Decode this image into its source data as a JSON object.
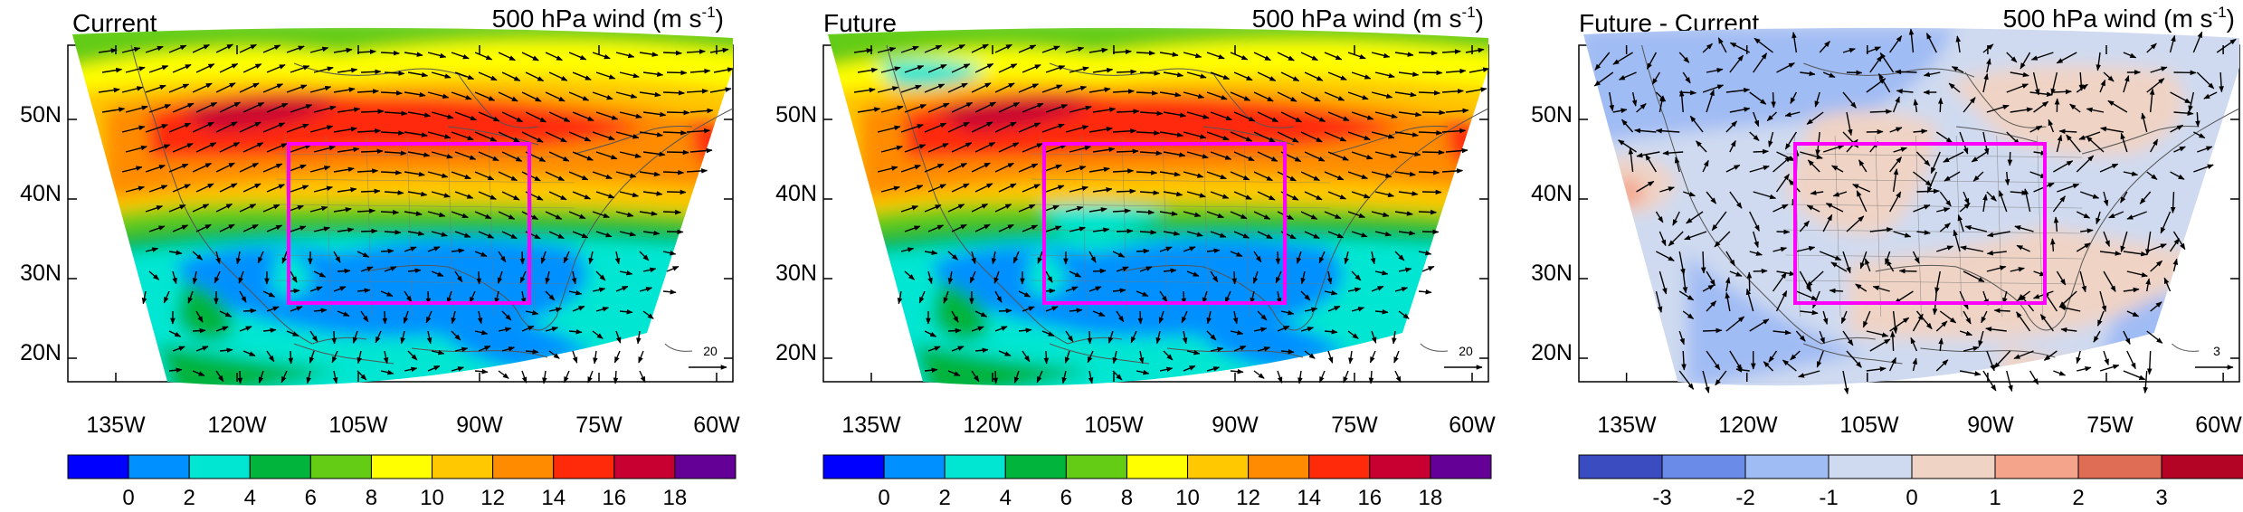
{
  "panels": [
    {
      "title": "Current",
      "subtitle": "500 hPa wind (m s",
      "unit_sup": "-1",
      "unit_close": ")",
      "ref_vector_label": "20",
      "lat_labels": [
        "50N",
        "40N",
        "30N",
        "20N"
      ],
      "lon_labels": [
        "135W",
        "120W",
        "105W",
        "90W",
        "75W",
        "60W"
      ],
      "colorbar": {
        "colors": [
          "#0000ff",
          "#0090ff",
          "#00e6d2",
          "#00b43c",
          "#64cc14",
          "#ffff00",
          "#ffc800",
          "#ff8c00",
          "#ff2a0a",
          "#c80032",
          "#640096"
        ],
        "labels": [
          "0",
          "2",
          "4",
          "6",
          "8",
          "10",
          "12",
          "14",
          "16",
          "18"
        ]
      }
    },
    {
      "title": "Future",
      "subtitle": "500 hPa wind (m s",
      "unit_sup": "-1",
      "unit_close": ")",
      "ref_vector_label": "20",
      "lat_labels": [
        "50N",
        "40N",
        "30N",
        "20N"
      ],
      "lon_labels": [
        "135W",
        "120W",
        "105W",
        "90W",
        "75W",
        "60W"
      ],
      "colorbar": {
        "colors": [
          "#0000ff",
          "#0090ff",
          "#00e6d2",
          "#00b43c",
          "#64cc14",
          "#ffff00",
          "#ffc800",
          "#ff8c00",
          "#ff2a0a",
          "#c80032",
          "#640096"
        ],
        "labels": [
          "0",
          "2",
          "4",
          "6",
          "8",
          "10",
          "12",
          "14",
          "16",
          "18"
        ]
      }
    },
    {
      "title": "Future - Current",
      "subtitle": "500 hPa wind (m s",
      "unit_sup": "-1",
      "unit_close": ")",
      "ref_vector_label": "3",
      "lat_labels": [
        "50N",
        "40N",
        "30N",
        "20N"
      ],
      "lon_labels": [
        "135W",
        "120W",
        "105W",
        "90W",
        "75W",
        "60W"
      ],
      "colorbar": {
        "colors": [
          "#3a4cc0",
          "#6a8be8",
          "#a0bcf4",
          "#cfdaf0",
          "#efd3c5",
          "#f4a48a",
          "#df6c55",
          "#b40426"
        ],
        "labels": [
          "-3",
          "-2",
          "-1",
          "0",
          "1",
          "2",
          "3"
        ]
      }
    }
  ],
  "region_box_color": "#ff00ff"
}
